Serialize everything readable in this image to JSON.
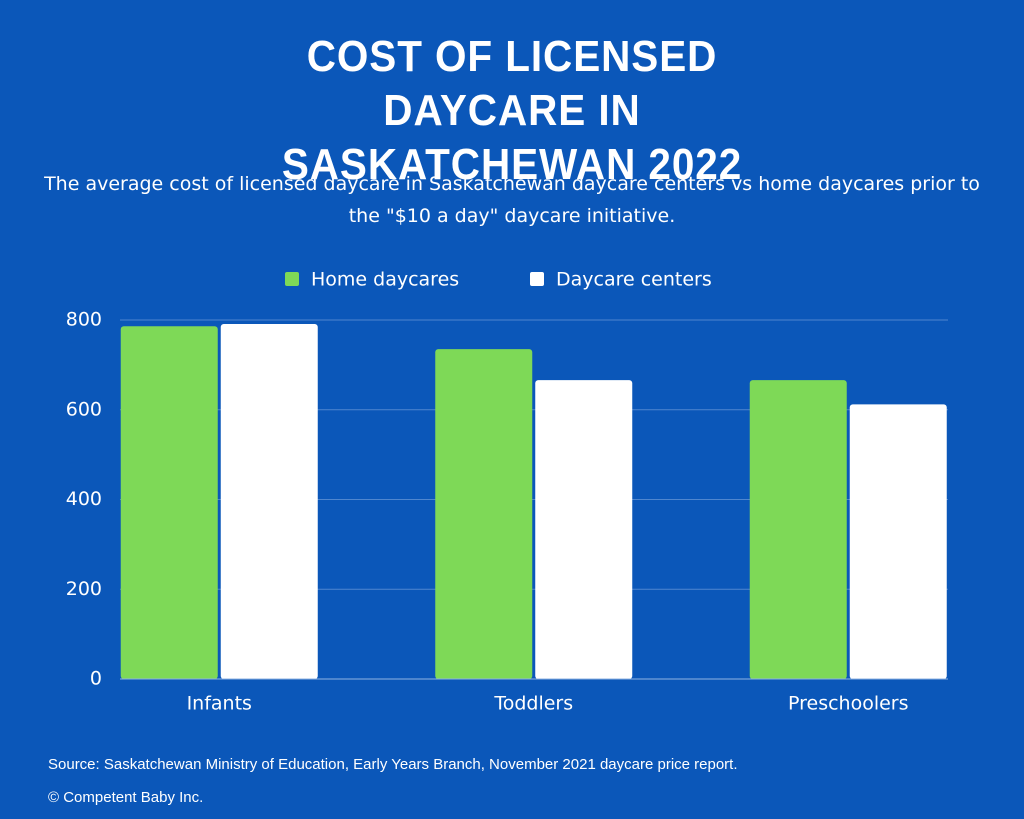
{
  "chart_data": {
    "type": "bar",
    "title": "COST OF LICENSED DAYCARE IN SASKATCHEWAN 2022",
    "subtitle": "The average cost of licensed daycare in Saskatchewan daycare centers vs home daycares prior to the \"$10 a day\" daycare initiative.",
    "categories": [
      "Infants",
      "Toddlers",
      "Preschoolers"
    ],
    "series": [
      {
        "name": "Home daycares",
        "color": "#7ed957",
        "values": [
          786,
          735,
          666
        ]
      },
      {
        "name": "Daycare centers",
        "color": "#ffffff",
        "values": [
          791,
          666,
          612
        ]
      }
    ],
    "ylim": [
      0,
      800
    ],
    "yticks": [
      0,
      200,
      400,
      600,
      800
    ],
    "grid": true,
    "legend": "top",
    "source": "Source: Saskatchewan Ministry of Education, Early Years Branch, November 2021 daycare price report.",
    "credit": "© Competent Baby Inc."
  }
}
